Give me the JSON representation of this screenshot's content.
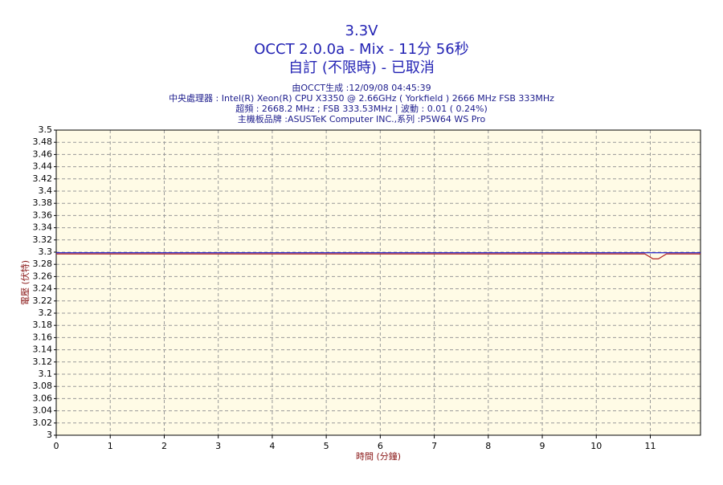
{
  "chart_data": {
    "type": "line",
    "title": "3.3V",
    "subtitles": [
      "OCCT 2.0.0a - Mix - 11分 56秒",
      "自訂 (不限時) - 已取消"
    ],
    "info": [
      "由OCCT生成 :12/09/08 04:45:39",
      "中央處理器 : Intel(R) Xeon(R) CPU X3350 @ 2.66GHz ( Yorkfield ) 2666 MHz FSB 333MHz",
      "超頻 : 2668.2 MHz ; FSB 333.53MHz | 波動 : 0.01 ( 0.24%)",
      "主機板品牌 :ASUSTeK Computer INC.,系列 :P5W64 WS Pro"
    ],
    "x_label": "時間 (分鐘)",
    "y_label": "電壓 (伏特)",
    "xlim": [
      0,
      11.93
    ],
    "xticks": [
      0,
      1,
      2,
      3,
      4,
      5,
      6,
      7,
      8,
      9,
      10,
      11
    ],
    "ylim": [
      3,
      3.5
    ],
    "yticks": [
      3,
      3.02,
      3.04,
      3.06,
      3.08,
      3.1,
      3.12,
      3.14,
      3.16,
      3.18,
      3.2,
      3.22,
      3.24,
      3.26,
      3.28,
      3.3,
      3.32,
      3.34,
      3.36,
      3.38,
      3.4,
      3.42,
      3.44,
      3.46,
      3.48,
      3.5
    ],
    "grid": true,
    "background": "#fffbe6",
    "series": [
      {
        "color": "#2222cc",
        "x": [
          0,
          11.93
        ],
        "values": [
          3.299,
          3.299
        ]
      },
      {
        "color": "#b22222",
        "x": [
          0,
          10.9,
          11.05,
          11.15,
          11.3,
          11.93
        ],
        "values": [
          3.297,
          3.297,
          3.289,
          3.289,
          3.297,
          3.297
        ]
      }
    ]
  }
}
